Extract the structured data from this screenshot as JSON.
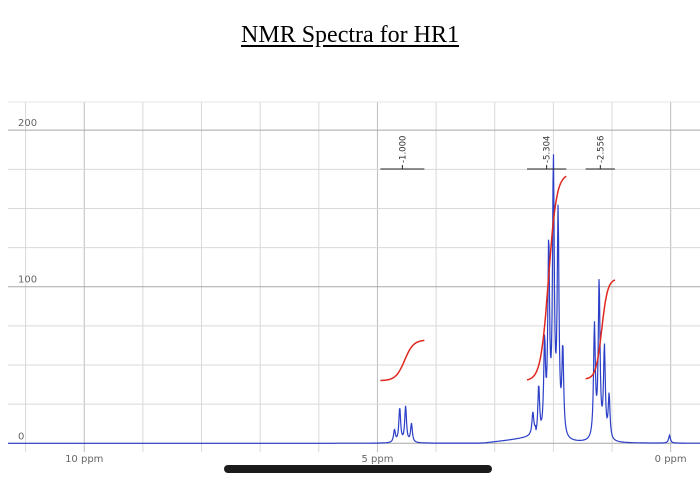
{
  "page": {
    "title": "NMR Spectra for HR1"
  },
  "chart_data": {
    "type": "line",
    "title": "NMR Spectra for HR1",
    "xlabel": "",
    "ylabel": "",
    "x_unit": "ppm",
    "x_reversed": true,
    "xlim": [
      11.3,
      -0.5
    ],
    "ylim": [
      -3,
      218
    ],
    "grid": true,
    "x_ticks": [
      {
        "value": 10,
        "label": "10 ppm"
      },
      {
        "value": 5,
        "label": "5 ppm"
      },
      {
        "value": 0,
        "label": "0 ppm"
      }
    ],
    "y_ticks": [
      {
        "value": 200,
        "label": "200"
      },
      {
        "value": 100,
        "label": "100"
      },
      {
        "value": 0,
        "label": "0"
      }
    ],
    "spectrum_color": "#2b3fc8",
    "integral_color": "#e0281e",
    "bracket_color": "#222222",
    "peaks": [
      {
        "shift": 4.71,
        "height": 8
      },
      {
        "shift": 4.62,
        "height": 22
      },
      {
        "shift": 4.52,
        "height": 23
      },
      {
        "shift": 4.42,
        "height": 12
      },
      {
        "shift": 2.35,
        "height": 14
      },
      {
        "shift": 2.25,
        "height": 33
      },
      {
        "shift": 2.15,
        "height": 58
      },
      {
        "shift": 2.08,
        "height": 120
      },
      {
        "shift": 2.0,
        "height": 172
      },
      {
        "shift": 1.92,
        "height": 140
      },
      {
        "shift": 1.84,
        "height": 55
      },
      {
        "shift": 1.3,
        "height": 72
      },
      {
        "shift": 1.22,
        "height": 100
      },
      {
        "shift": 1.13,
        "height": 58
      },
      {
        "shift": 1.05,
        "height": 28
      },
      {
        "shift": 0.02,
        "height": 5
      }
    ],
    "integrals": [
      {
        "label": "1.000",
        "from": 4.95,
        "to": 4.2,
        "y_start": 40,
        "y_end": 66
      },
      {
        "label": "5.304",
        "from": 2.45,
        "to": 1.78,
        "y_start": 40,
        "y_end": 172
      },
      {
        "label": "2.556",
        "from": 1.45,
        "to": 0.95,
        "y_start": 41,
        "y_end": 105
      }
    ]
  }
}
